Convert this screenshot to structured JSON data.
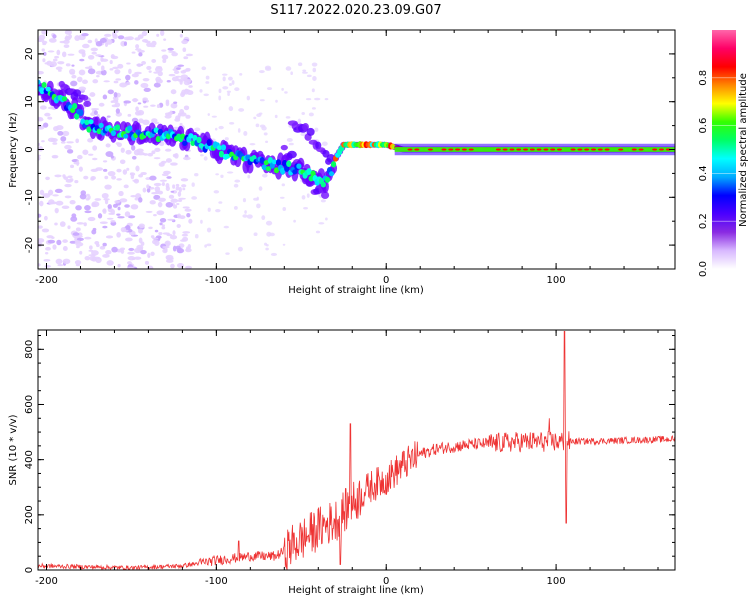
{
  "title": "S117.2022.020.23.09.G07",
  "colors": {
    "snr_line": "#ee3333",
    "frame": "#000000",
    "cbar_stops": [
      "#ffffff",
      "#d8b8ff",
      "#8a2be2",
      "#4b00ff",
      "#0000ff",
      "#00aaff",
      "#00ffff",
      "#00ff66",
      "#33ff00",
      "#ffff00",
      "#ff8800",
      "#ff0000",
      "#ff0066",
      "#ff66aa"
    ]
  },
  "chart_data": [
    {
      "type": "heatmap",
      "xlabel": "Height of straight line (km)",
      "ylabel": "Frequency (Hz)",
      "xlim": [
        -205,
        170
      ],
      "ylim": [
        -25,
        25
      ],
      "xticks": [
        "-200",
        "-100",
        "0",
        "100"
      ],
      "yticks": [
        "20",
        "10",
        "0",
        "-10",
        "-20"
      ],
      "colorbar": {
        "label": "Normalized spectral amplitude",
        "range": [
          0,
          1
        ],
        "ticks": [
          "0.0",
          "0.2",
          "0.4",
          "0.6",
          "0.8"
        ]
      },
      "ridge": [
        {
          "x": -205,
          "y": 14
        },
        {
          "x": -195,
          "y": 11
        },
        {
          "x": -185,
          "y": 9
        },
        {
          "x": -175,
          "y": 5
        },
        {
          "x": -165,
          "y": 4
        },
        {
          "x": -150,
          "y": 3.5
        },
        {
          "x": -130,
          "y": 3
        },
        {
          "x": -115,
          "y": 2
        },
        {
          "x": -100,
          "y": 0
        },
        {
          "x": -85,
          "y": -2
        },
        {
          "x": -70,
          "y": -3
        },
        {
          "x": -55,
          "y": -4
        },
        {
          "x": -45,
          "y": -5
        },
        {
          "x": -35,
          "y": -7
        },
        {
          "x": -30,
          "y": -2
        },
        {
          "x": -25,
          "y": 1
        },
        {
          "x": -15,
          "y": 1
        },
        {
          "x": 0,
          "y": 1
        },
        {
          "x": 10,
          "y": 0
        },
        {
          "x": 170,
          "y": 0
        }
      ],
      "side_ridges": [
        [
          {
            "x": -200,
            "y": 12
          },
          {
            "x": -190,
            "y": 13
          },
          {
            "x": -175,
            "y": 10
          }
        ],
        [
          {
            "x": -55,
            "y": 6
          },
          {
            "x": -45,
            "y": 3
          },
          {
            "x": -38,
            "y": -1
          },
          {
            "x": -32,
            "y": -3
          }
        ],
        [
          {
            "x": -60,
            "y": 0
          },
          {
            "x": -50,
            "y": -4
          },
          {
            "x": -45,
            "y": -7
          },
          {
            "x": -35,
            "y": -10
          }
        ]
      ]
    },
    {
      "type": "line",
      "xlabel": "Height of straight line (km)",
      "ylabel": "SNR (10 * v/v)",
      "xlim": [
        -205,
        170
      ],
      "ylim": [
        0,
        870
      ],
      "xticks": [
        "-200",
        "-100",
        "0",
        "100"
      ],
      "yticks": [
        "0",
        "200",
        "400",
        "600",
        "800"
      ],
      "series": [
        {
          "trend": [
            {
              "x": -205,
              "y": 15
            },
            {
              "x": -150,
              "y": 8
            },
            {
              "x": -120,
              "y": 15
            },
            {
              "x": -100,
              "y": 35
            },
            {
              "x": -80,
              "y": 50
            },
            {
              "x": -65,
              "y": 50
            },
            {
              "x": -50,
              "y": 110
            },
            {
              "x": -40,
              "y": 150
            },
            {
              "x": -30,
              "y": 180
            },
            {
              "x": -20,
              "y": 240
            },
            {
              "x": -10,
              "y": 300
            },
            {
              "x": 0,
              "y": 330
            },
            {
              "x": 10,
              "y": 380
            },
            {
              "x": 20,
              "y": 420
            },
            {
              "x": 30,
              "y": 440
            },
            {
              "x": 50,
              "y": 455
            },
            {
              "x": 80,
              "y": 465
            },
            {
              "x": 100,
              "y": 465
            },
            {
              "x": 130,
              "y": 468
            },
            {
              "x": 170,
              "y": 475
            }
          ],
          "spikes": [
            {
              "x": -21,
              "y": 530
            },
            {
              "x": -27,
              "y": 20
            },
            {
              "x": 105,
              "y": 865
            },
            {
              "x": 106,
              "y": 170
            },
            {
              "x": 96,
              "y": 550
            },
            {
              "x": -87,
              "y": 105
            }
          ]
        }
      ]
    }
  ]
}
